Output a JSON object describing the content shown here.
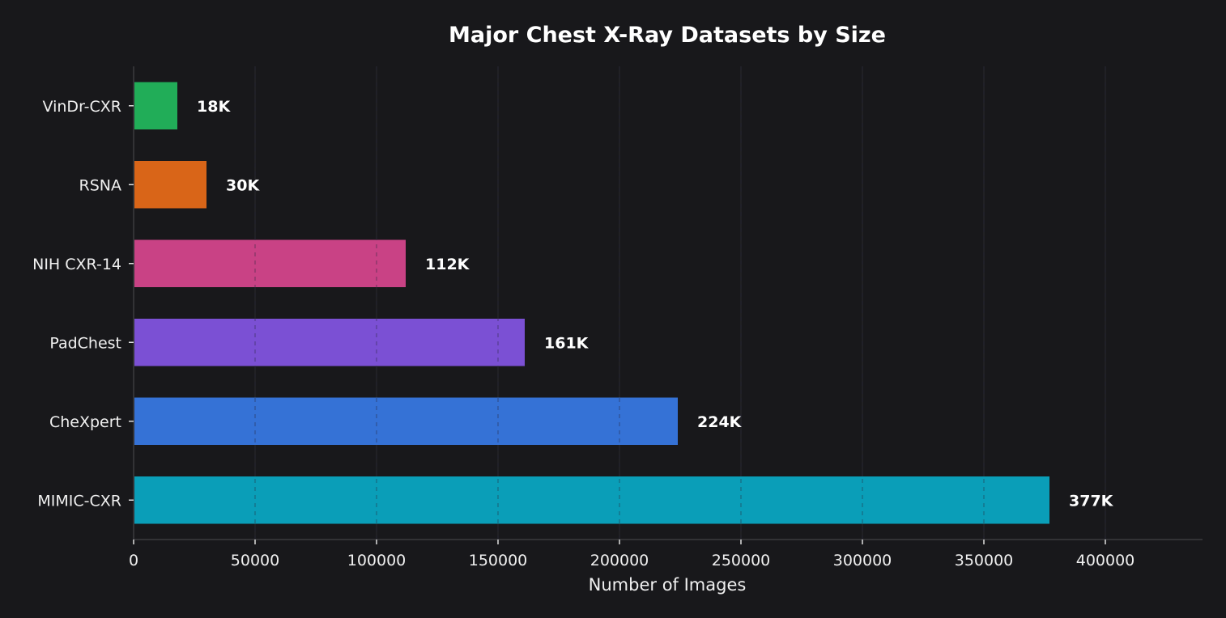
{
  "chart_data": {
    "type": "bar",
    "orientation": "horizontal",
    "title": "Major Chest X-Ray Datasets by Size",
    "xlabel": "Number of Images",
    "ylabel": "",
    "xlim": [
      0,
      440000
    ],
    "x_ticks": [
      0,
      50000,
      100000,
      150000,
      200000,
      250000,
      300000,
      350000,
      400000
    ],
    "x_tick_labels": [
      "0",
      "50000",
      "100000",
      "150000",
      "200000",
      "250000",
      "300000",
      "350000",
      "400000"
    ],
    "grid": "x, dashed",
    "categories": [
      "MIMIC-CXR",
      "CheXpert",
      "PadChest",
      "NIH CXR-14",
      "RSNA",
      "VinDr-CXR"
    ],
    "values": [
      377000,
      224000,
      161000,
      112000,
      30000,
      18000
    ],
    "data_labels": [
      "377K",
      "224K",
      "161K",
      "112K",
      "30K",
      "18K"
    ],
    "colors": [
      "#0a9eb8",
      "#3572d6",
      "#7b50d4",
      "#c94285",
      "#d96518",
      "#21ad58"
    ]
  },
  "style": {
    "background": "#18181b",
    "axis_color": "#3a3a3e",
    "grid_color": "#4a4a4e",
    "text_color": "#f0f0f0"
  }
}
